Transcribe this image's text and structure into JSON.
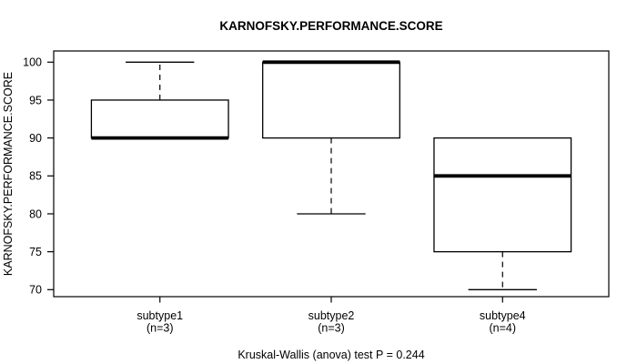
{
  "chart_data": {
    "type": "boxplot",
    "title": "KARNOFSKY.PERFORMANCE.SCORE",
    "ylabel": "KARNOFSKY.PERFORMANCE.SCORE",
    "xlabel": "",
    "caption": "Kruskal-Wallis (anova) test P = 0.244",
    "ylim": [
      70,
      100
    ],
    "yticks": [
      70,
      75,
      80,
      85,
      90,
      95,
      100
    ],
    "grid": false,
    "legend": null,
    "groups": [
      {
        "label": "subtype1",
        "sublabel": "(n=3)",
        "stats": {
          "min": 90,
          "q1": 90,
          "median": 90,
          "q3": 95,
          "max": 100
        }
      },
      {
        "label": "subtype2",
        "sublabel": "(n=3)",
        "stats": {
          "min": 80,
          "q1": 90,
          "median": 100,
          "q3": 100,
          "max": 100
        }
      },
      {
        "label": "subtype4",
        "sublabel": "(n=4)",
        "stats": {
          "min": 70,
          "q1": 75,
          "median": 85,
          "q3": 90,
          "max": 90
        }
      }
    ],
    "colors": {
      "line": "#000000",
      "box_fill": "#ffffff",
      "background": "#ffffff"
    }
  }
}
